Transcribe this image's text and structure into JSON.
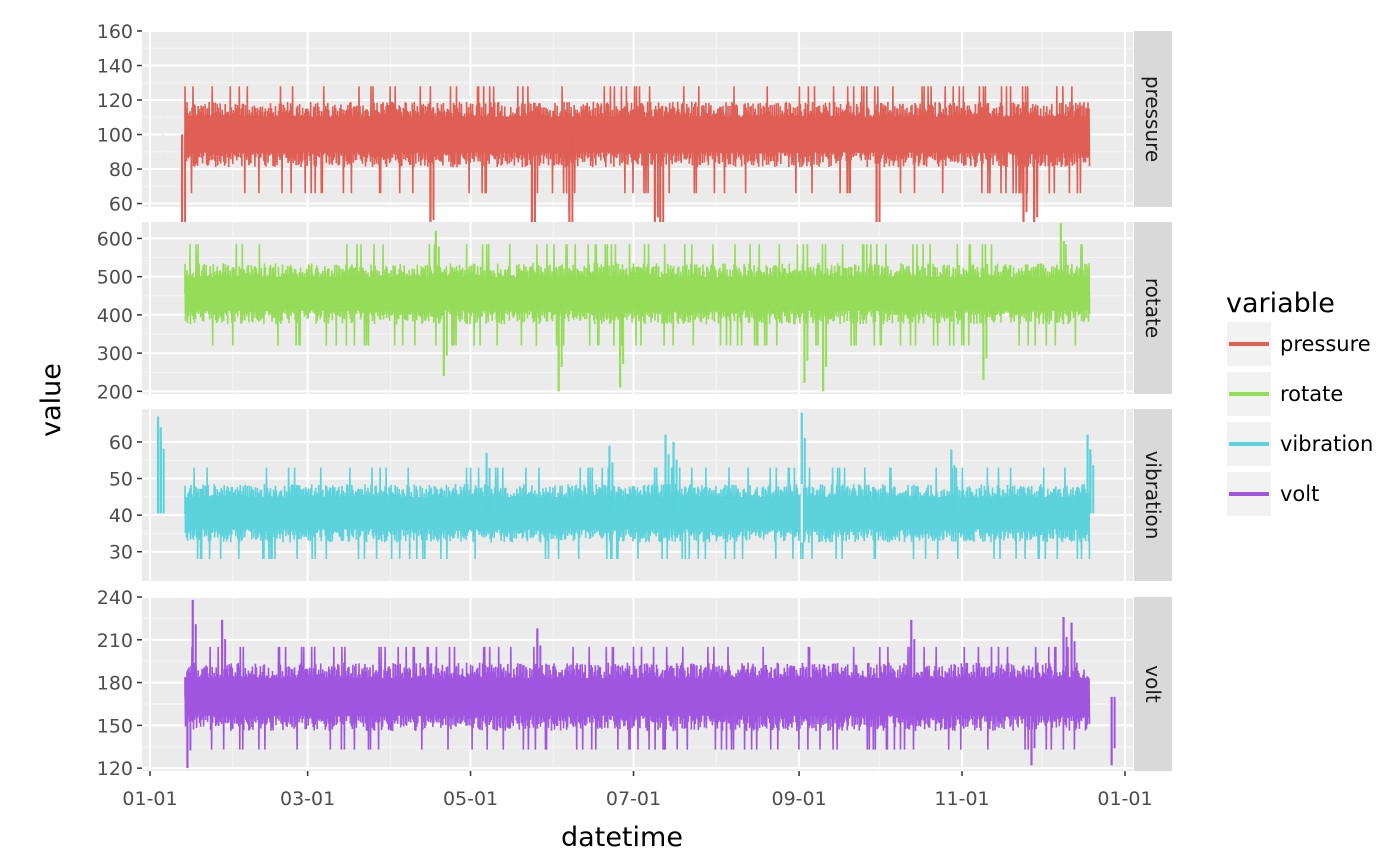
{
  "chart_data": {
    "type": "line",
    "xlabel": "datetime",
    "ylabel": "value",
    "x_tick_labels": [
      "01-01",
      "03-01",
      "05-01",
      "07-01",
      "09-01",
      "11-01",
      "01-01"
    ],
    "x_range_days": [
      -3,
      368
    ],
    "legend": {
      "title": "variable",
      "placement": "right",
      "entries": [
        "pressure",
        "rotate",
        "vibration",
        "volt"
      ]
    },
    "grid": true,
    "panels": [
      {
        "strip": "pressure",
        "color": "#df5f55",
        "ylim": [
          58,
          160
        ],
        "yticks": [
          60,
          80,
          100,
          120,
          140,
          160
        ],
        "band": {
          "center": 100,
          "halfwidth": 19,
          "min_cap": 66,
          "max_cap": 128
        },
        "events": [
          [
            5,
            18,
            0
          ],
          [
            12,
            8,
            -1
          ],
          [
            105,
            50,
            1
          ],
          [
            105,
            34,
            -1
          ],
          [
            143,
            47,
            1
          ],
          [
            143,
            30,
            -1
          ],
          [
            157,
            56,
            1
          ],
          [
            157,
            32,
            -1
          ],
          [
            189,
            36,
            1
          ],
          [
            191,
            30,
            -1
          ],
          [
            272,
            30,
            -1
          ],
          [
            331,
            55,
            1
          ],
          [
            331,
            36,
            -1
          ],
          [
            327,
            40,
            -1
          ]
        ]
      },
      {
        "strip": "rotate",
        "color": "#95dc58",
        "ylim": [
          193,
          643
        ],
        "yticks": [
          200,
          300,
          400,
          500,
          600
        ],
        "band": {
          "center": 455,
          "halfwidth": 80,
          "min_cap": 320,
          "max_cap": 585
        },
        "events": [
          [
            110,
            240,
            -1
          ],
          [
            153,
            200,
            -1
          ],
          [
            176,
            210,
            -1
          ],
          [
            245,
            222,
            -1
          ],
          [
            252,
            200,
            -1
          ],
          [
            312,
            230,
            -1
          ],
          [
            341,
            640,
            1
          ],
          [
            107,
            620,
            1
          ]
        ]
      },
      {
        "strip": "vibration",
        "color": "#5bd2dc",
        "ylim": [
          22,
          69
        ],
        "yticks": [
          30,
          40,
          50,
          60
        ],
        "band": {
          "center": 40.5,
          "halfwidth": 8,
          "min_cap": 28,
          "max_cap": 53
        },
        "events": [
          [
            3,
            67,
            1
          ],
          [
            4,
            64,
            1
          ],
          [
            126,
            57,
            1
          ],
          [
            172,
            59,
            1
          ],
          [
            193,
            62,
            1
          ],
          [
            196,
            60,
            1
          ],
          [
            244,
            68,
            1
          ],
          [
            244,
            44,
            0
          ],
          [
            300,
            58,
            1
          ],
          [
            351,
            62,
            1
          ],
          [
            352,
            58,
            1
          ]
        ]
      },
      {
        "strip": "volt",
        "color": "#a055e0",
        "ylim": [
          118,
          240
        ],
        "yticks": [
          120,
          150,
          180,
          210,
          240
        ],
        "band": {
          "center": 170,
          "halfwidth": 24,
          "min_cap": 133,
          "max_cap": 205
        },
        "events": [
          [
            16,
            238,
            1
          ],
          [
            27,
            224,
            1
          ],
          [
            145,
            218,
            1
          ],
          [
            285,
            224,
            1
          ],
          [
            342,
            226,
            1
          ],
          [
            345,
            222,
            1
          ],
          [
            14,
            120,
            -1
          ],
          [
            330,
            122,
            -1
          ],
          [
            360,
            122,
            -1
          ]
        ]
      }
    ]
  }
}
